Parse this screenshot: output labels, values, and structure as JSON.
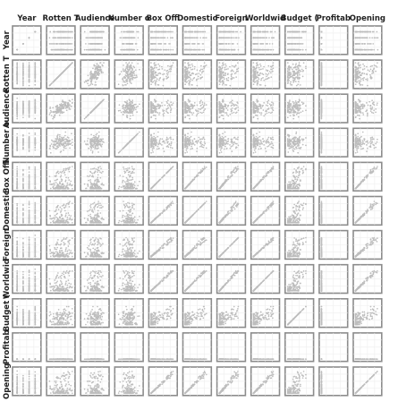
{
  "chart_data": {
    "type": "scatter",
    "subtype": "scatterplot-matrix",
    "title": "",
    "variables": [
      {
        "key": "year",
        "label": "Year"
      },
      {
        "key": "rt",
        "label": "Rotten T"
      },
      {
        "key": "aud",
        "label": "Audience"
      },
      {
        "key": "num",
        "label": "Number o"
      },
      {
        "key": "box",
        "label": "Box Offi"
      },
      {
        "key": "dom",
        "label": "Domestic"
      },
      {
        "key": "for",
        "label": "Foreign"
      },
      {
        "key": "ww",
        "label": "Worldwid"
      },
      {
        "key": "bud",
        "label": "Budget ("
      },
      {
        "key": "prof",
        "label": "Profitab"
      },
      {
        "key": "open",
        "label": "Opening"
      }
    ],
    "grid": true,
    "point_color": "#bdbdbd",
    "frame_color": "#8c8c8c"
  }
}
